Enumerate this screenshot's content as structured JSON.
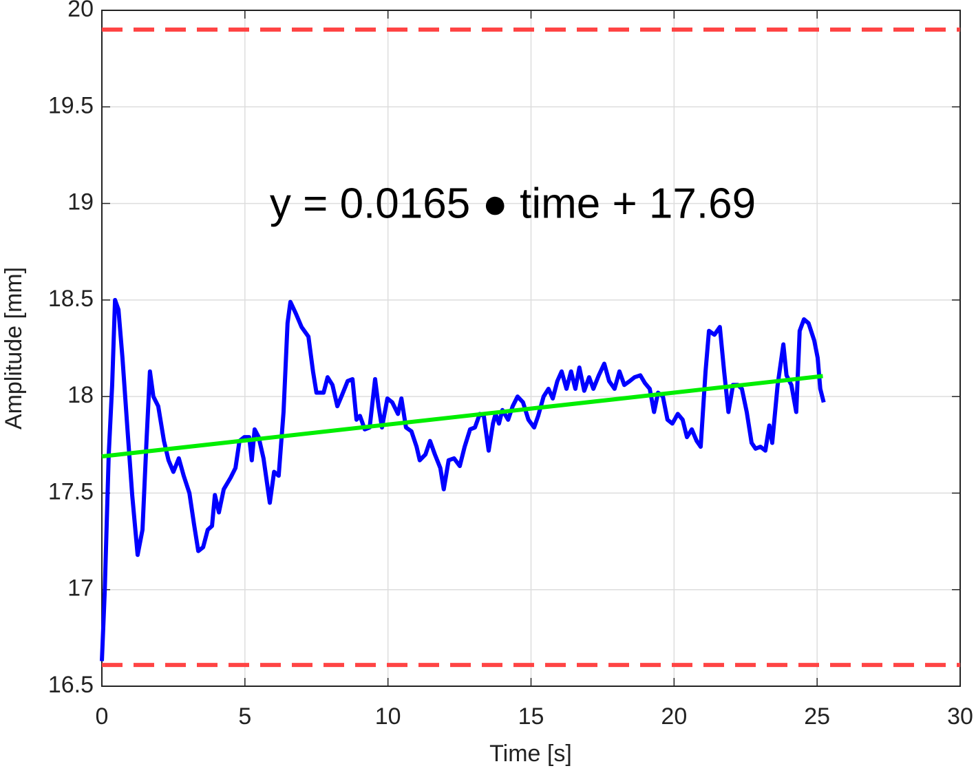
{
  "chart_data": {
    "type": "line",
    "xlabel": "Time [s]",
    "ylabel": "Amplitude [mm]",
    "annotation": "y = 0.0165 ● time + 17.69",
    "xlim": [
      0,
      30
    ],
    "xticks": [
      0,
      5,
      10,
      15,
      20,
      25,
      30
    ],
    "ylim": [
      16.5,
      20
    ],
    "yticks": [
      16.5,
      17,
      17.5,
      18,
      18.5,
      19,
      19.5,
      20
    ],
    "grid": true,
    "series": [
      {
        "color": "#0000ff",
        "x": [
          0,
          0.1,
          0.24,
          0.36,
          0.46,
          0.58,
          0.72,
          0.89,
          1.06,
          1.25,
          1.42,
          1.56,
          1.68,
          1.8,
          1.97,
          2.17,
          2.33,
          2.5,
          2.69,
          2.86,
          3.06,
          3.22,
          3.37,
          3.54,
          3.7,
          3.85,
          3.95,
          4.09,
          4.26,
          4.5,
          4.67,
          4.81,
          4.98,
          5.15,
          5.24,
          5.34,
          5.48,
          5.65,
          5.87,
          6.02,
          6.18,
          6.35,
          6.49,
          6.59,
          6.78,
          6.98,
          7.22,
          7.38,
          7.5,
          7.75,
          7.89,
          8.06,
          8.23,
          8.4,
          8.59,
          8.76,
          8.9,
          9.02,
          9.19,
          9.36,
          9.55,
          9.67,
          9.79,
          9.98,
          10.15,
          10.35,
          10.47,
          10.63,
          10.82,
          11,
          11.11,
          11.31,
          11.47,
          11.64,
          11.83,
          11.95,
          12.12,
          12.31,
          12.51,
          12.68,
          12.87,
          13.04,
          13.21,
          13.35,
          13.52,
          13.67,
          13.76,
          13.88,
          14,
          14.2,
          14.36,
          14.53,
          14.72,
          14.91,
          15.11,
          15.25,
          15.44,
          15.61,
          15.76,
          15.92,
          16.07,
          16.24,
          16.4,
          16.55,
          16.69,
          16.86,
          17.03,
          17.18,
          17.37,
          17.56,
          17.73,
          17.92,
          18.09,
          18.26,
          18.45,
          18.62,
          18.82,
          18.98,
          19.15,
          19.3,
          19.44,
          19.61,
          19.77,
          19.94,
          20.13,
          20.3,
          20.45,
          20.62,
          20.79,
          20.93,
          21.1,
          21.22,
          21.41,
          21.6,
          21.75,
          21.9,
          22.06,
          22.23,
          22.37,
          22.54,
          22.71,
          22.85,
          23.02,
          23.19,
          23.33,
          23.43,
          23.62,
          23.82,
          23.93,
          24.1,
          24.27,
          24.39,
          24.54,
          24.7,
          24.9,
          25.02,
          25.11,
          25.23
        ],
        "values": [
          16.63,
          16.99,
          17.7,
          18.06,
          18.5,
          18.45,
          18.2,
          17.84,
          17.49,
          17.18,
          17.31,
          17.77,
          18.13,
          18,
          17.95,
          17.77,
          17.67,
          17.61,
          17.68,
          17.59,
          17.5,
          17.34,
          17.2,
          17.22,
          17.31,
          17.33,
          17.49,
          17.4,
          17.52,
          17.58,
          17.63,
          17.77,
          17.79,
          17.79,
          17.67,
          17.83,
          17.79,
          17.68,
          17.45,
          17.61,
          17.59,
          17.92,
          18.38,
          18.49,
          18.43,
          18.36,
          18.31,
          18.13,
          18.02,
          18.02,
          18.1,
          18.06,
          17.95,
          18.01,
          18.08,
          18.09,
          17.88,
          17.9,
          17.83,
          17.84,
          18.09,
          17.95,
          17.84,
          17.99,
          17.97,
          17.91,
          17.99,
          17.84,
          17.82,
          17.74,
          17.67,
          17.7,
          17.77,
          17.7,
          17.63,
          17.52,
          17.67,
          17.68,
          17.64,
          17.74,
          17.83,
          17.84,
          17.91,
          17.9,
          17.72,
          17.86,
          17.91,
          17.86,
          17.93,
          17.88,
          17.95,
          18,
          17.97,
          17.88,
          17.84,
          17.9,
          18,
          18.04,
          17.99,
          18.08,
          18.13,
          18.04,
          18.13,
          18.04,
          18.15,
          18.03,
          18.1,
          18.04,
          18.11,
          18.17,
          18.08,
          18.04,
          18.13,
          18.06,
          18.08,
          18.1,
          18.11,
          18.07,
          18.04,
          17.92,
          18.02,
          18,
          17.88,
          17.86,
          17.91,
          17.88,
          17.79,
          17.83,
          17.77,
          17.74,
          18.13,
          18.34,
          18.32,
          18.36,
          18.13,
          17.92,
          18.06,
          18.06,
          18.04,
          17.92,
          17.76,
          17.73,
          17.74,
          17.72,
          17.85,
          17.76,
          18.06,
          18.27,
          18.11,
          18.06,
          17.92,
          18.34,
          18.4,
          18.38,
          18.29,
          18.2,
          18.04,
          17.97
        ]
      },
      {
        "color": "#00ee00",
        "x": [
          0,
          25.2
        ],
        "values": [
          17.69,
          18.106
        ]
      }
    ],
    "hlines": [
      {
        "value": 19.9,
        "color": "#f44"
      },
      {
        "value": 16.61,
        "color": "#f44"
      }
    ]
  }
}
